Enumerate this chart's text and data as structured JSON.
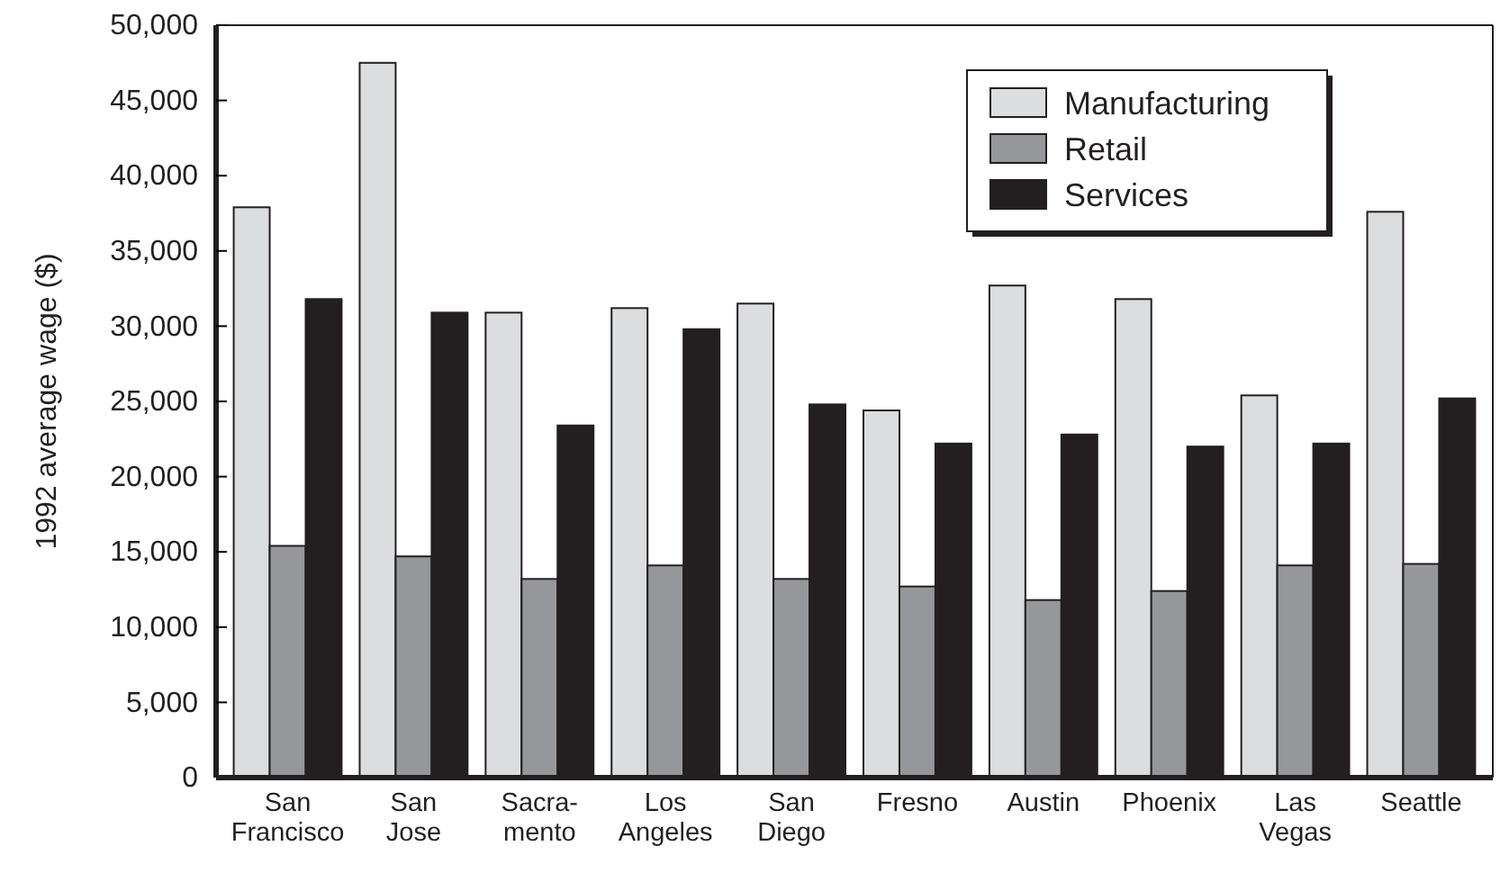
{
  "chart_data": {
    "type": "bar",
    "ylabel": "1992 average wage ($)",
    "categories": [
      "San\nFrancisco",
      "San\nJose",
      "Sacra-\nmento",
      "Los\nAngeles",
      "San\nDiego",
      "Fresno",
      "Austin",
      "Phoenix",
      "Las\nVegas",
      "Seattle"
    ],
    "series": [
      {
        "name": "Manufacturing",
        "color": "#dcdddf",
        "values": [
          37900,
          47500,
          30900,
          31200,
          31500,
          24400,
          32700,
          31800,
          25400,
          37600
        ]
      },
      {
        "name": "Retail",
        "color": "#96979a",
        "values": [
          15400,
          14700,
          13200,
          14100,
          13200,
          12700,
          11800,
          12400,
          14100,
          14200
        ]
      },
      {
        "name": "Services",
        "color": "#231f20",
        "values": [
          31800,
          30900,
          23400,
          29800,
          24800,
          22200,
          22800,
          22000,
          22200,
          25200
        ]
      }
    ],
    "ylim": [
      0,
      50000
    ],
    "yticks": [
      0,
      {
        "value": 5000,
        "label": "5,000"
      },
      {
        "value": 10000,
        "label": "10,000"
      },
      {
        "value": 15000,
        "label": "15,000"
      },
      {
        "value": 20000,
        "label": "20,000"
      },
      {
        "value": 25000,
        "label": "25,000"
      },
      {
        "value": 30000,
        "label": "30,000"
      },
      {
        "value": 35000,
        "label": "35,000"
      },
      {
        "value": 40000,
        "label": "40,000"
      },
      {
        "value": 45000,
        "label": "45,000"
      },
      {
        "value": 50000,
        "label": "50,000"
      }
    ],
    "grid": false,
    "legend": "top right"
  }
}
